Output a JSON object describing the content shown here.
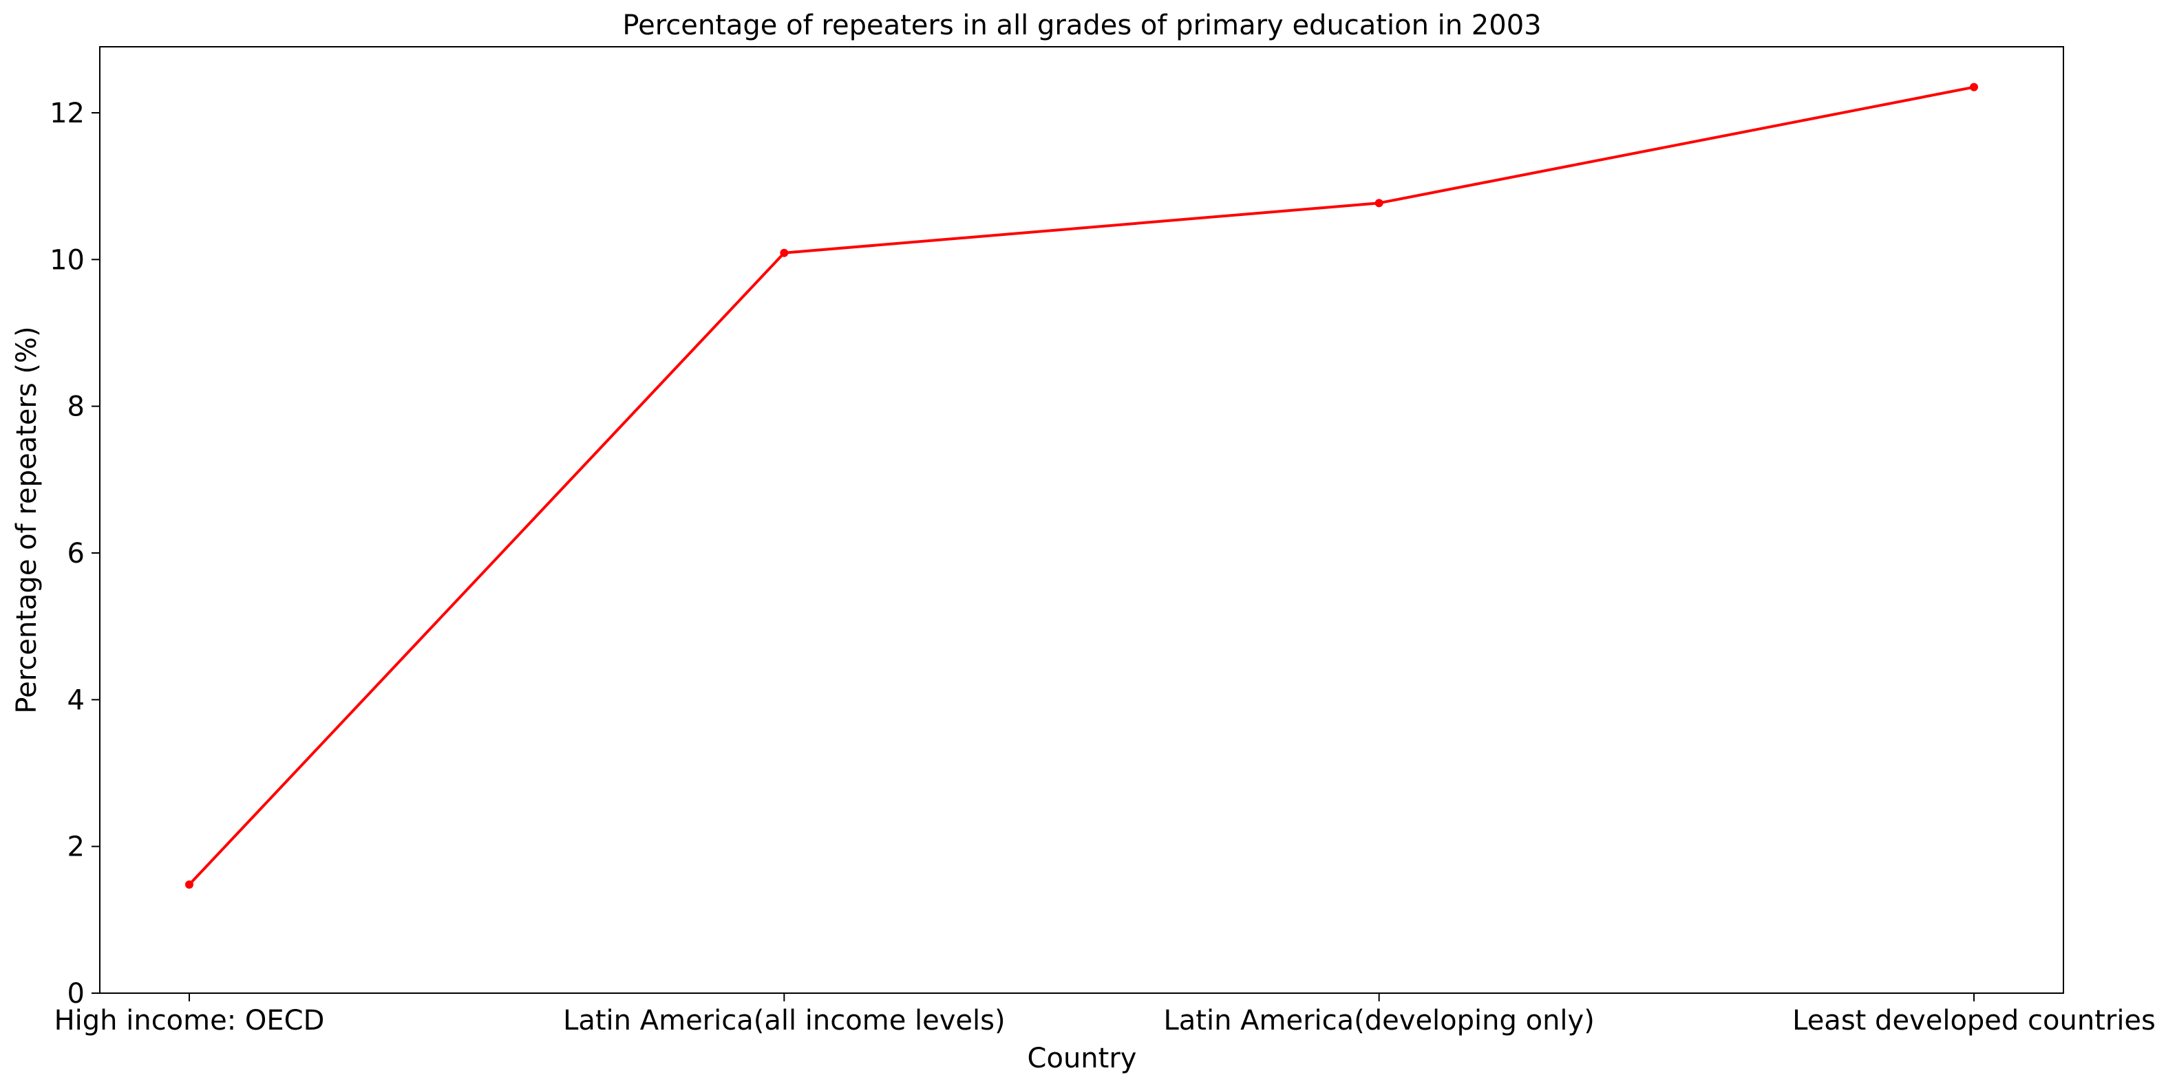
{
  "chart_data": {
    "type": "line",
    "title": "Percentage of repeaters in all grades of primary education in 2003",
    "xlabel": "Country",
    "ylabel": "Percentage of repeaters (%)",
    "categories": [
      "High income: OECD",
      "Latin America(all income levels)",
      "Latin America(developing only)",
      "Least developed countries"
    ],
    "series": [
      {
        "values": [
          1.48,
          10.09,
          10.77,
          12.35
        ],
        "color": "#ff0000",
        "marker": "circle"
      }
    ],
    "ylim": [
      0,
      12.9
    ],
    "yticks": [
      0,
      2,
      4,
      6,
      8,
      10,
      12
    ],
    "grid": false,
    "legend": "none"
  }
}
